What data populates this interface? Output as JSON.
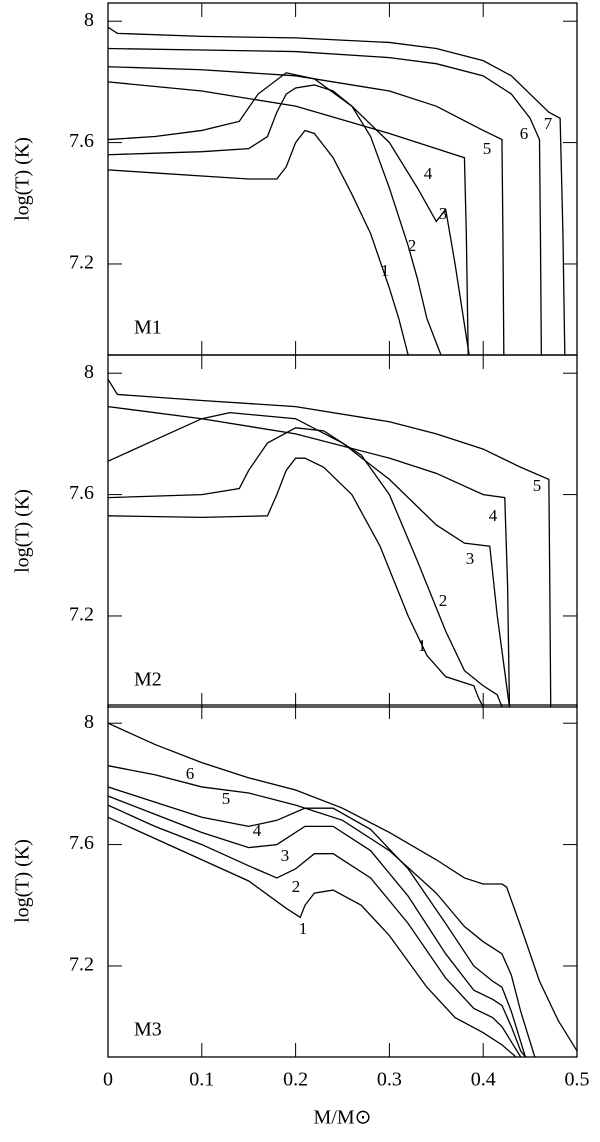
{
  "chart_data": [
    {
      "type": "line",
      "annotation": "M1",
      "ylabel": "log(T)  (K)",
      "xlim": [
        0,
        0.5
      ],
      "xticks": [
        0,
        0.1,
        0.2,
        0.3,
        0.4,
        0.5
      ],
      "ylim": [
        6.9,
        8.06
      ],
      "yticks": [
        7.2,
        7.6,
        8
      ],
      "color": "#000000",
      "series": [
        {
          "name": "1",
          "x": [
            0,
            0.05,
            0.1,
            0.15,
            0.18,
            0.19,
            0.2,
            0.21,
            0.22,
            0.24,
            0.26,
            0.28,
            0.3,
            0.31,
            0.32
          ],
          "values": [
            7.51,
            7.5,
            7.49,
            7.48,
            7.48,
            7.52,
            7.6,
            7.64,
            7.63,
            7.55,
            7.43,
            7.3,
            7.12,
            7.02,
            6.9
          ]
        },
        {
          "name": "2",
          "x": [
            0,
            0.05,
            0.1,
            0.15,
            0.17,
            0.18,
            0.19,
            0.2,
            0.22,
            0.24,
            0.26,
            0.28,
            0.3,
            0.32,
            0.33,
            0.34,
            0.35,
            0.355
          ],
          "values": [
            7.56,
            7.565,
            7.57,
            7.58,
            7.62,
            7.7,
            7.76,
            7.78,
            7.79,
            7.77,
            7.72,
            7.62,
            7.45,
            7.26,
            7.15,
            7.02,
            6.94,
            6.9
          ]
        },
        {
          "name": "3",
          "x": [
            0,
            0.05,
            0.1,
            0.14,
            0.16,
            0.19,
            0.22,
            0.26,
            0.3,
            0.33,
            0.35,
            0.36,
            0.37,
            0.38,
            0.385
          ],
          "values": [
            7.61,
            7.62,
            7.64,
            7.67,
            7.76,
            7.83,
            7.81,
            7.72,
            7.6,
            7.45,
            7.34,
            7.38,
            7.2,
            7.0,
            6.9
          ]
        },
        {
          "name": "4",
          "x": [
            0,
            0.1,
            0.2,
            0.3,
            0.35,
            0.38,
            0.382,
            0.384
          ],
          "values": [
            7.8,
            7.77,
            7.72,
            7.63,
            7.58,
            7.55,
            7.3,
            6.9
          ]
        },
        {
          "name": "5",
          "x": [
            0,
            0.1,
            0.2,
            0.3,
            0.35,
            0.4,
            0.42,
            0.421,
            0.422
          ],
          "values": [
            7.85,
            7.84,
            7.82,
            7.77,
            7.72,
            7.64,
            7.61,
            7.3,
            6.9
          ]
        },
        {
          "name": "6",
          "x": [
            0,
            0.1,
            0.2,
            0.3,
            0.35,
            0.4,
            0.43,
            0.45,
            0.46,
            0.461,
            0.462
          ],
          "values": [
            7.91,
            7.905,
            7.9,
            7.88,
            7.86,
            7.82,
            7.76,
            7.68,
            7.61,
            7.3,
            6.9
          ]
        },
        {
          "name": "7",
          "x": [
            0,
            0.01,
            0.1,
            0.2,
            0.3,
            0.35,
            0.4,
            0.43,
            0.45,
            0.47,
            0.482,
            0.485,
            0.487
          ],
          "values": [
            7.98,
            7.96,
            7.95,
            7.945,
            7.93,
            7.91,
            7.87,
            7.82,
            7.76,
            7.7,
            7.68,
            7.3,
            6.9
          ]
        }
      ]
    },
    {
      "type": "line",
      "annotation": "M2",
      "ylabel": "log(T)  (K)",
      "xlim": [
        0,
        0.5
      ],
      "xticks": [
        0,
        0.1,
        0.2,
        0.3,
        0.4,
        0.5
      ],
      "ylim": [
        6.9,
        8.06
      ],
      "yticks": [
        7.2,
        7.6,
        8
      ],
      "color": "#000000",
      "series": [
        {
          "name": "1",
          "x": [
            0,
            0.1,
            0.17,
            0.18,
            0.19,
            0.2,
            0.21,
            0.23,
            0.26,
            0.29,
            0.32,
            0.34,
            0.36,
            0.38,
            0.39,
            0.395,
            0.4
          ],
          "values": [
            7.53,
            7.525,
            7.53,
            7.6,
            7.68,
            7.72,
            7.72,
            7.69,
            7.6,
            7.43,
            7.2,
            7.07,
            7.0,
            6.98,
            6.97,
            6.93,
            6.9
          ]
        },
        {
          "name": "2",
          "x": [
            0,
            0.1,
            0.14,
            0.15,
            0.17,
            0.2,
            0.23,
            0.27,
            0.3,
            0.33,
            0.36,
            0.38,
            0.4,
            0.415,
            0.42
          ],
          "values": [
            7.59,
            7.6,
            7.62,
            7.68,
            7.77,
            7.82,
            7.81,
            7.73,
            7.6,
            7.38,
            7.15,
            7.02,
            6.97,
            6.94,
            6.9
          ]
        },
        {
          "name": "3",
          "x": [
            0,
            0.05,
            0.1,
            0.13,
            0.2,
            0.25,
            0.3,
            0.35,
            0.38,
            0.407,
            0.415,
            0.428
          ],
          "values": [
            7.71,
            7.78,
            7.85,
            7.87,
            7.85,
            7.77,
            7.65,
            7.5,
            7.44,
            7.43,
            7.2,
            6.9
          ]
        },
        {
          "name": "4",
          "x": [
            0,
            0.1,
            0.2,
            0.3,
            0.35,
            0.4,
            0.423,
            0.426,
            0.428
          ],
          "values": [
            7.89,
            7.85,
            7.8,
            7.72,
            7.67,
            7.6,
            7.59,
            7.3,
            6.9
          ]
        },
        {
          "name": "5",
          "x": [
            0,
            0.01,
            0.1,
            0.2,
            0.3,
            0.35,
            0.4,
            0.44,
            0.47,
            0.471,
            0.472
          ],
          "values": [
            7.98,
            7.93,
            7.91,
            7.89,
            7.84,
            7.8,
            7.75,
            7.69,
            7.65,
            7.3,
            6.9
          ]
        }
      ]
    },
    {
      "type": "line",
      "annotation": "M3",
      "ylabel": "log(T)  (K)",
      "xlabel": "M/M⊙",
      "xlim": [
        0,
        0.5
      ],
      "xticks": [
        0,
        0.1,
        0.2,
        0.3,
        0.4,
        0.5
      ],
      "ylim": [
        6.9,
        8.06
      ],
      "yticks": [
        7.2,
        7.6,
        8
      ],
      "color": "#000000",
      "series": [
        {
          "name": "1",
          "x": [
            0,
            0.05,
            0.1,
            0.15,
            0.19,
            0.205,
            0.21,
            0.22,
            0.24,
            0.27,
            0.3,
            0.34,
            0.37,
            0.4,
            0.42,
            0.435
          ],
          "values": [
            7.69,
            7.62,
            7.55,
            7.48,
            7.39,
            7.36,
            7.4,
            7.44,
            7.45,
            7.4,
            7.3,
            7.13,
            7.03,
            6.98,
            6.94,
            6.9
          ]
        },
        {
          "name": "2",
          "x": [
            0,
            0.05,
            0.1,
            0.15,
            0.18,
            0.2,
            0.22,
            0.24,
            0.28,
            0.32,
            0.36,
            0.39,
            0.41,
            0.42,
            0.43,
            0.44
          ],
          "values": [
            7.73,
            7.66,
            7.6,
            7.53,
            7.49,
            7.52,
            7.57,
            7.57,
            7.49,
            7.34,
            7.16,
            7.06,
            7.03,
            7.0,
            6.95,
            6.9
          ]
        },
        {
          "name": "3",
          "x": [
            0,
            0.05,
            0.1,
            0.15,
            0.18,
            0.21,
            0.24,
            0.28,
            0.32,
            0.36,
            0.39,
            0.41,
            0.42,
            0.43,
            0.44,
            0.445
          ],
          "values": [
            7.76,
            7.7,
            7.64,
            7.59,
            7.6,
            7.66,
            7.66,
            7.58,
            7.43,
            7.24,
            7.12,
            7.09,
            7.07,
            7.0,
            6.92,
            6.9
          ]
        },
        {
          "name": "4",
          "x": [
            0,
            0.05,
            0.1,
            0.15,
            0.18,
            0.21,
            0.24,
            0.28,
            0.32,
            0.36,
            0.39,
            0.41,
            0.42,
            0.43,
            0.44,
            0.445
          ],
          "values": [
            7.79,
            7.74,
            7.69,
            7.66,
            7.68,
            7.72,
            7.72,
            7.65,
            7.52,
            7.34,
            7.2,
            7.15,
            7.13,
            7.05,
            6.95,
            6.9
          ]
        },
        {
          "name": "5",
          "x": [
            0,
            0.05,
            0.1,
            0.15,
            0.2,
            0.25,
            0.3,
            0.35,
            0.38,
            0.4,
            0.42,
            0.43,
            0.44,
            0.45,
            0.455
          ],
          "values": [
            7.86,
            7.83,
            7.79,
            7.77,
            7.73,
            7.68,
            7.58,
            7.44,
            7.33,
            7.28,
            7.24,
            7.17,
            7.05,
            6.95,
            6.9
          ]
        },
        {
          "name": "6",
          "x": [
            0,
            0.05,
            0.1,
            0.15,
            0.2,
            0.25,
            0.3,
            0.35,
            0.38,
            0.4,
            0.42,
            0.425,
            0.44,
            0.46,
            0.48,
            0.5
          ],
          "values": [
            8.0,
            7.93,
            7.87,
            7.82,
            7.78,
            7.72,
            7.64,
            7.55,
            7.49,
            7.47,
            7.47,
            7.46,
            7.33,
            7.15,
            7.02,
            6.92
          ]
        }
      ]
    }
  ]
}
